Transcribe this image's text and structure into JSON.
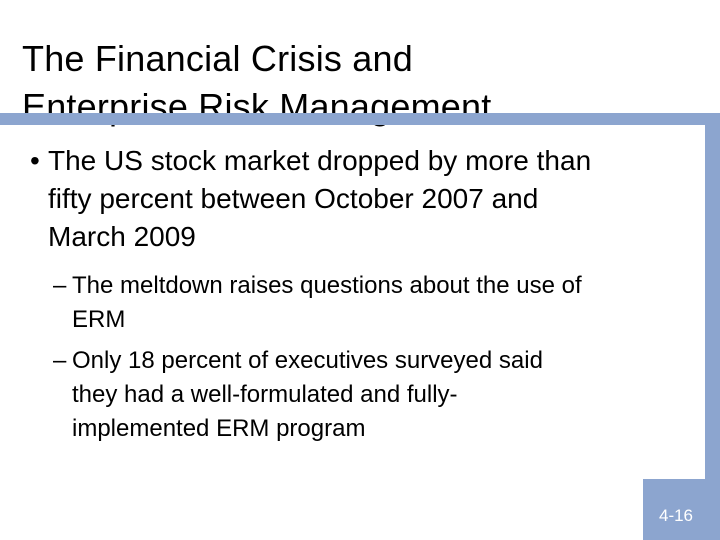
{
  "slide": {
    "background_color": "#FFFFFF",
    "accent_color": "#8CA5CF",
    "text_color": "#000000",
    "title": "The Financial Crisis and\nEnterprise Risk Management",
    "body": {
      "main_bullet": {
        "marker": "•",
        "text": "The US stock market dropped by more than\nfifty percent between October 2007 and\nMarch 2009"
      },
      "sub_bullets": [
        {
          "marker": "–",
          "text": "The meltdown raises questions about the use of\nERM"
        },
        {
          "marker": "–",
          "text": "Only 18 percent of executives surveyed said\nthey had a well-formulated and fully-\nimplemented ERM program"
        }
      ]
    },
    "footer": {
      "page_number": "4-16",
      "text_color": "#FFFFFF"
    }
  }
}
